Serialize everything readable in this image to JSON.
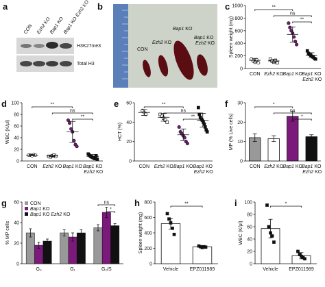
{
  "blot": {
    "panel": "a",
    "lanes": [
      "CON",
      "Ezh2 KO",
      "Bap1 KO",
      "Bap1 KO Ezh2 KO"
    ],
    "bands": [
      "H3K27me3",
      "Total H3"
    ]
  },
  "photo": {
    "panel": "b",
    "labels": [
      "CON",
      "Ezh2 KO",
      "Bap1 KO",
      "Bap1 KO Ezh2 KO"
    ]
  },
  "chart_data": [
    {
      "type": "dot",
      "panel": "c",
      "y_label": "Spleen weight (mg)",
      "categories": [
        "CON",
        "Ezh2 KO",
        "Bap1 KO",
        "Bap1 KO Ezh2 KO"
      ],
      "colors": [
        "#ffffff",
        "#ffffff",
        "#7b1a7a",
        "#111111"
      ],
      "shapes": [
        "circle",
        "square",
        "circle",
        "square"
      ],
      "points": [
        [
          150,
          120,
          100,
          140,
          90
        ],
        [
          150,
          120,
          100,
          130,
          90
        ],
        [
          720,
          650,
          600,
          560,
          500,
          430,
          380
        ],
        [
          280,
          240,
          220,
          210,
          190,
          180,
          160,
          150
        ]
      ],
      "means": [
        130,
        120,
        540,
        210
      ],
      "sd": [
        30,
        25,
        120,
        40
      ],
      "ylim": [
        0,
        1000
      ],
      "yticks": [
        0,
        200,
        400,
        600,
        800,
        1000
      ],
      "brackets": [
        {
          "label": "**",
          "from": 0,
          "to": 2
        },
        {
          "label": "ns",
          "from": 1,
          "to": 3
        },
        {
          "label": "**",
          "from": 2,
          "to": 3
        }
      ]
    },
    {
      "type": "dot",
      "panel": "d",
      "y_label": "WBC (K/μl)",
      "categories": [
        "CON",
        "Ezh2 KO",
        "Bap1 KO",
        "Bap1 KO Ezh2 KO"
      ],
      "colors": [
        "#ffffff",
        "#ffffff",
        "#7b1a7a",
        "#111111"
      ],
      "shapes": [
        "circle",
        "square",
        "circle",
        "square"
      ],
      "points": [
        [
          10,
          10,
          9,
          11,
          10
        ],
        [
          8,
          7,
          9,
          10,
          8
        ],
        [
          70,
          65,
          55,
          50,
          35,
          28,
          25
        ],
        [
          12,
          10,
          8,
          7,
          6,
          5,
          4,
          9,
          3
        ]
      ],
      "means": [
        10,
        8.5,
        50,
        8
      ],
      "sd": [
        1,
        1,
        18,
        3
      ],
      "ylim": [
        0,
        100
      ],
      "yticks": [
        0,
        20,
        40,
        60,
        80,
        100
      ],
      "brackets": [
        {
          "label": "**",
          "from": 0,
          "to": 2
        },
        {
          "label": "ns",
          "from": 1,
          "to": 3
        },
        {
          "label": "**",
          "from": 2,
          "to": 3
        }
      ]
    },
    {
      "type": "dot",
      "panel": "e",
      "y_label": "HCT (%)",
      "categories": [
        "CON",
        "Ezh2 KO",
        "Bap1 KO",
        "Bap1 KO Ezh2 KO"
      ],
      "colors": [
        "#ffffff",
        "#ffffff",
        "#7b1a7a",
        "#111111"
      ],
      "shapes": [
        "circle",
        "square",
        "circle",
        "square"
      ],
      "points": [
        [
          52,
          50,
          48
        ],
        [
          48,
          46,
          44,
          42,
          40
        ],
        [
          35,
          30,
          28,
          26,
          24,
          20,
          18
        ],
        [
          55,
          48,
          45,
          43,
          42,
          40,
          38,
          35,
          32,
          30
        ]
      ],
      "means": [
        50,
        45,
        27,
        42
      ],
      "sd": [
        3,
        4,
        6,
        7
      ],
      "ylim": [
        0,
        60
      ],
      "yticks": [
        0,
        20,
        40,
        60
      ],
      "brackets": [
        {
          "label": "**",
          "from": 0,
          "to": 2
        },
        {
          "label": "ns",
          "from": 1,
          "to": 3
        },
        {
          "label": "**",
          "from": 2,
          "to": 3
        }
      ]
    },
    {
      "type": "bar",
      "panel": "f",
      "y_label": "MP (% Live cells)",
      "categories": [
        "CON",
        "Ezh2 KO",
        "Bap1 KO",
        "Bap1 KO Ezh2 KO"
      ],
      "colors": [
        "#999999",
        "#ffffff",
        "#7b1a7a",
        "#111111"
      ],
      "values": [
        12,
        11.5,
        23,
        12.5
      ],
      "errors": [
        2,
        1.5,
        2.5,
        1
      ],
      "ylim": [
        0,
        30
      ],
      "yticks": [
        0,
        10,
        20,
        30
      ],
      "brackets": [
        {
          "label": "*",
          "from": 0,
          "to": 2
        },
        {
          "label": "ns",
          "from": 1,
          "to": 3
        },
        {
          "label": "*",
          "from": 2,
          "to": 3
        }
      ]
    },
    {
      "type": "grouped_bar",
      "panel": "g",
      "y_label": "% MP cells",
      "categories": [
        "G₀",
        "G₁",
        "G₂/S"
      ],
      "series": [
        {
          "name": "CON",
          "color": "#999999",
          "values": [
            30,
            30,
            35
          ],
          "errors": [
            4,
            3,
            3
          ]
        },
        {
          "name": "Bap1 KO",
          "color": "#7b1a7a",
          "values": [
            18,
            26,
            50
          ],
          "errors": [
            3,
            4,
            5
          ]
        },
        {
          "name": "Bap1 KO Ezh2 KO",
          "color": "#111111",
          "values": [
            22,
            30,
            37
          ],
          "errors": [
            2,
            3,
            2
          ]
        }
      ],
      "ylim": [
        0,
        60
      ],
      "yticks": [
        0,
        20,
        40,
        60
      ],
      "legend": "top-left",
      "brackets": [
        {
          "label": "ns",
          "group": 2,
          "from": 0,
          "to": 2
        },
        {
          "label": "*",
          "group": 2,
          "from": 1,
          "to": 2
        }
      ]
    },
    {
      "type": "bar",
      "panel": "h",
      "y_label": "Spleen weight (mg)",
      "categories": [
        "Vehicle",
        "EPZ011989"
      ],
      "colors": [
        "#ffffff",
        "#ffffff"
      ],
      "shapes": [
        "square",
        "square"
      ],
      "values": [
        520,
        220
      ],
      "errors": [
        70,
        15
      ],
      "points": [
        [
          650,
          580,
          530,
          460,
          380
        ],
        [
          230,
          220,
          210,
          220,
          215
        ]
      ],
      "ylim": [
        0,
        800
      ],
      "yticks": [
        0,
        200,
        400,
        600,
        800
      ],
      "brackets": [
        {
          "label": "**",
          "from": 0,
          "to": 1
        }
      ]
    },
    {
      "type": "bar",
      "panel": "i",
      "y_label": "WBC (K/μl)",
      "categories": [
        "Vehicle",
        "EPZ011989"
      ],
      "colors": [
        "#ffffff",
        "#ffffff"
      ],
      "shapes": [
        "square",
        "square"
      ],
      "values": [
        57,
        13
      ],
      "errors": [
        15,
        5
      ],
      "points": [
        [
          95,
          60,
          50,
          45,
          35
        ],
        [
          20,
          15,
          12,
          10,
          8
        ]
      ],
      "ylim": [
        0,
        100
      ],
      "yticks": [
        0,
        20,
        40,
        60,
        80,
        100
      ],
      "brackets": [
        {
          "label": "*",
          "from": 0,
          "to": 1
        }
      ]
    }
  ]
}
